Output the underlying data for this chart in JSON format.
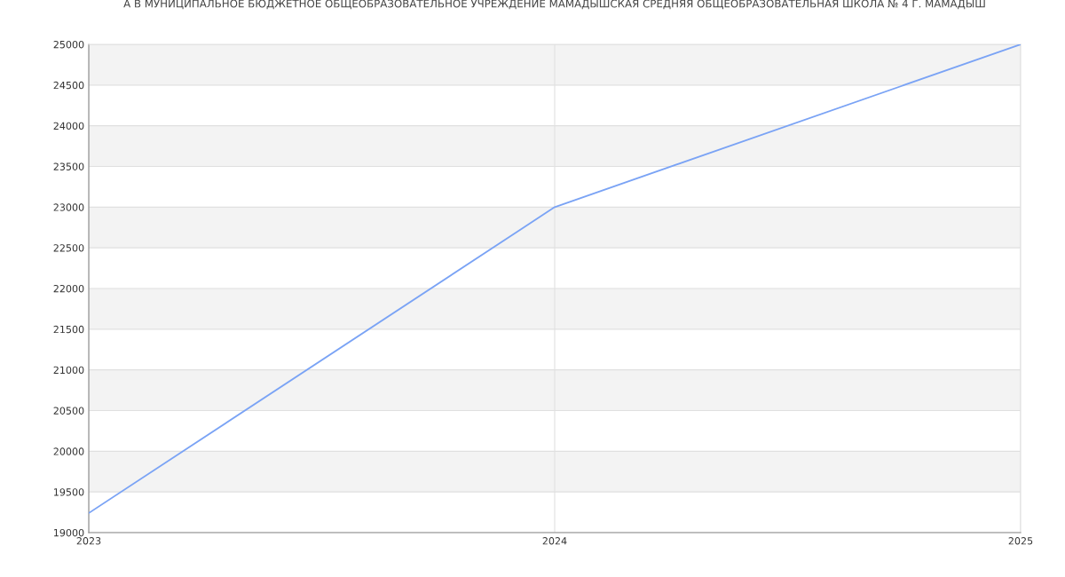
{
  "chart_data": {
    "type": "line",
    "title": "А В МУНИЦИПАЛЬНОЕ БЮДЖЕТНОЕ ОБЩЕОБРАЗОВАТЕЛЬНОЕ УЧРЕЖДЕНИЕ МАМАДЫШСКАЯ СРЕДНЯЯ ОБЩЕОБРАЗОВАТЕЛЬНАЯ ШКОЛА № 4 Г. МАМАДЫШ",
    "x": [
      2023,
      2024,
      2025
    ],
    "series": [
      {
        "color": "#7aa3f5",
        "values": [
          19240,
          23000,
          25000
        ]
      }
    ],
    "xlim": [
      2023,
      2025
    ],
    "xticks": [
      2023,
      2024,
      2025
    ],
    "ylim": [
      19000,
      25000
    ],
    "yticks": [
      19000,
      19500,
      20000,
      20500,
      21000,
      21500,
      22000,
      22500,
      23000,
      23500,
      24000,
      24500,
      25000
    ],
    "grid": true,
    "marker": "none",
    "line_style": "solid",
    "legend": false
  }
}
